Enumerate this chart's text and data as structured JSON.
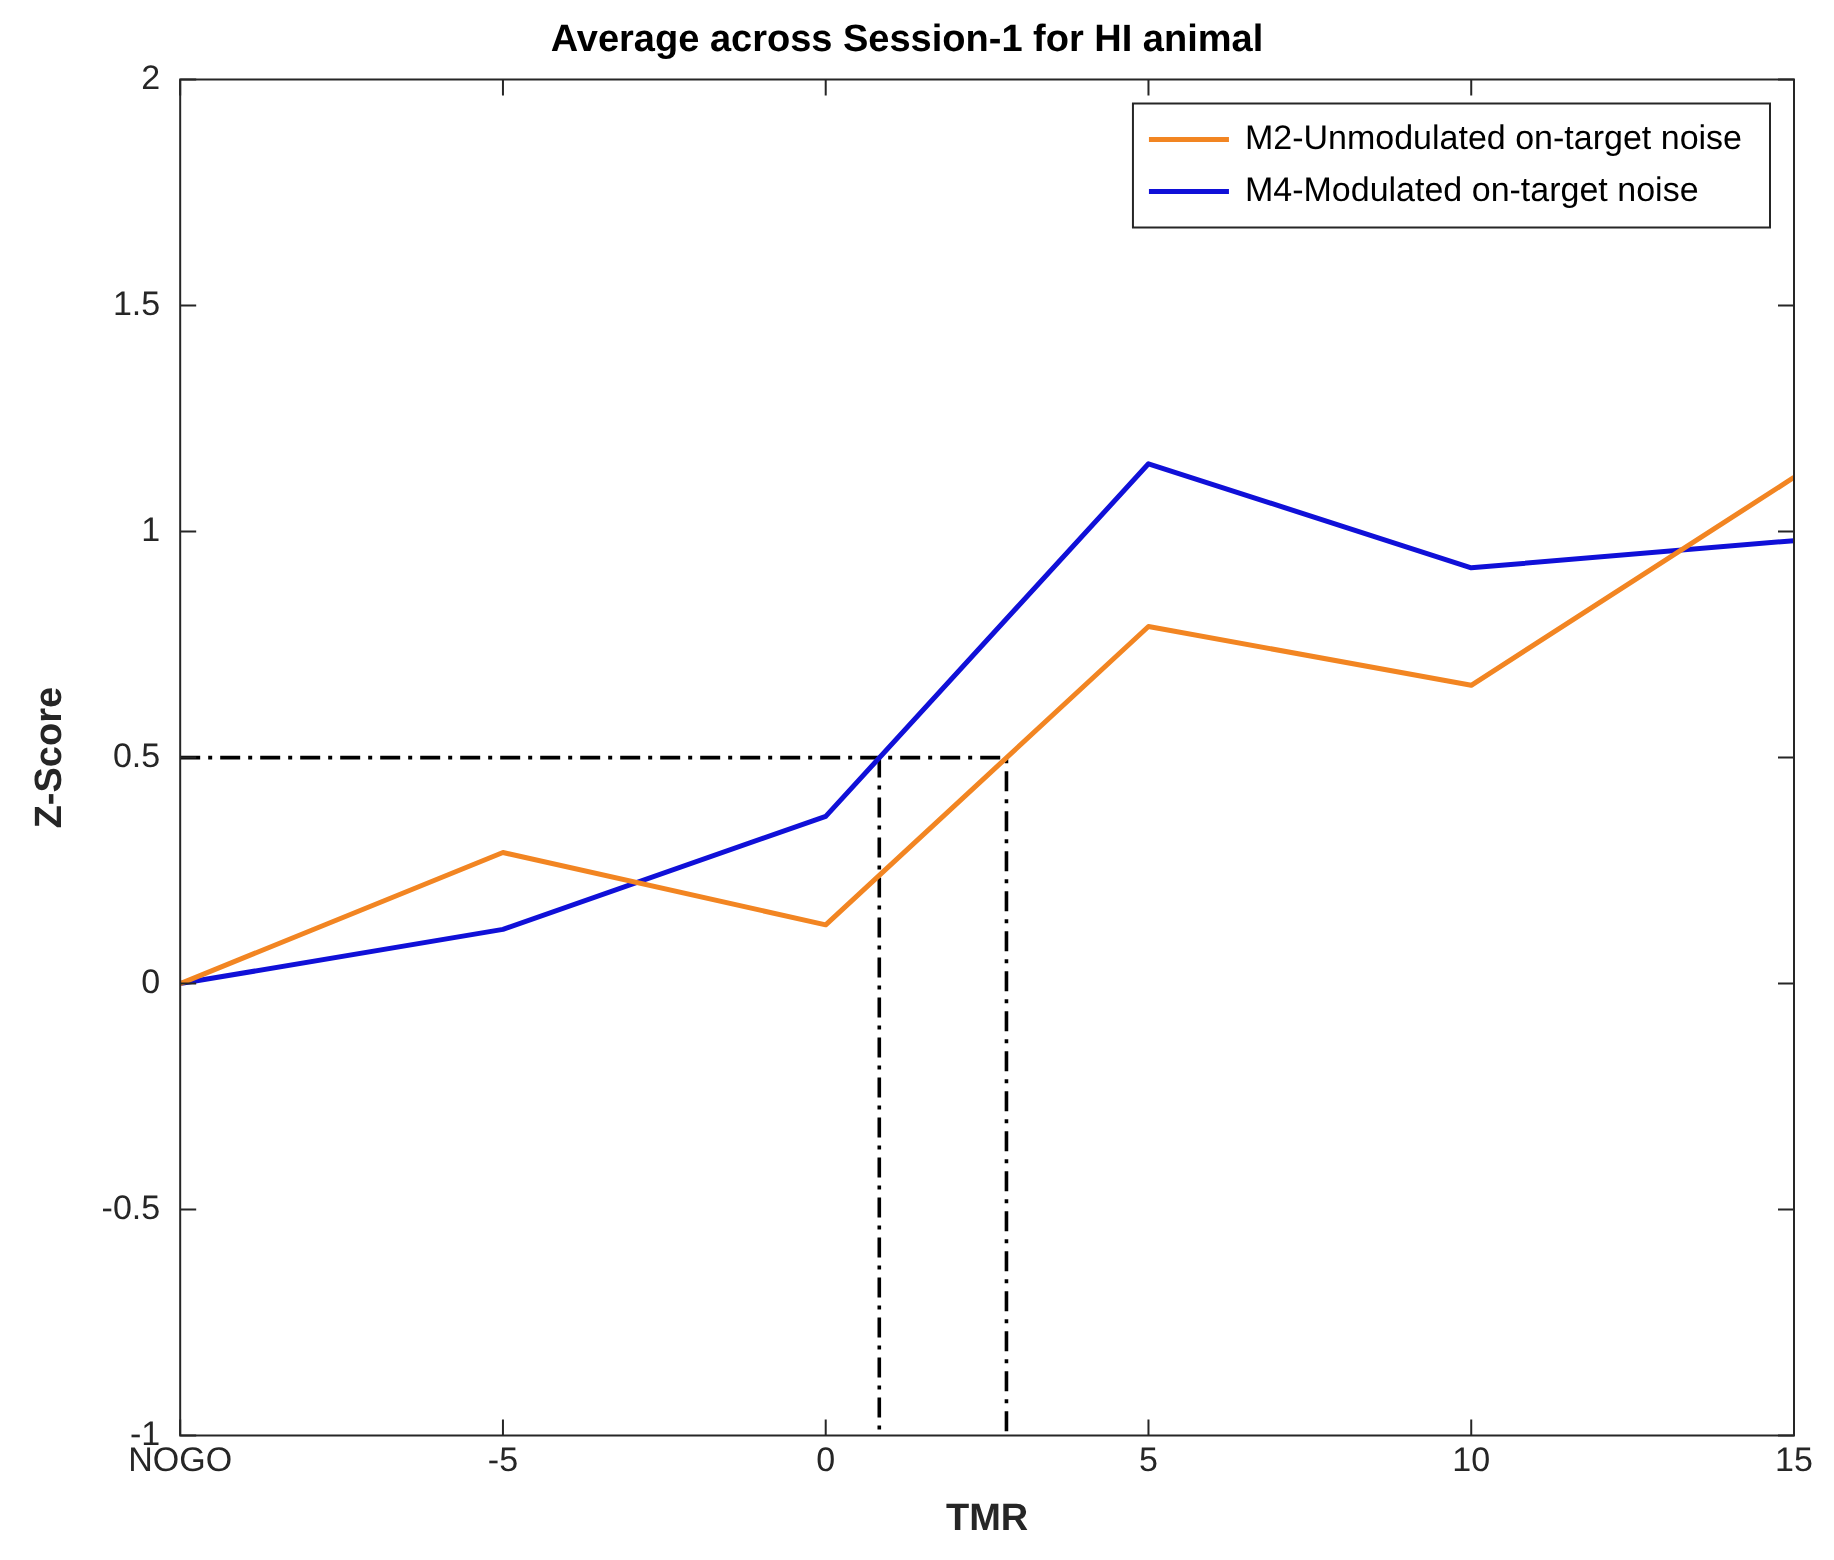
{
  "chart_data": {
    "type": "line",
    "title": "Average across Session-1 for HI animal",
    "xlabel": "TMR",
    "ylabel": "Z-Score",
    "x": [
      -10,
      -5,
      0,
      5,
      10,
      15
    ],
    "xlim": [
      -10,
      15
    ],
    "xticks": [
      {
        "value": -10,
        "label": "NOGO"
      },
      -5,
      0,
      5,
      10,
      15
    ],
    "ylim": [
      -1,
      2
    ],
    "yticks": [
      -1,
      -0.5,
      0,
      0.5,
      1,
      1.5,
      2
    ],
    "series": [
      {
        "name": "M2-Unmodulated on-target noise",
        "color": "#f28522",
        "values": [
          0,
          0.29,
          0.13,
          0.79,
          0.66,
          1.12
        ]
      },
      {
        "name": "M4-Modulated on-target noise",
        "color": "#1010d8",
        "values": [
          0,
          0.12,
          0.37,
          1.15,
          0.92,
          0.98
        ]
      },
      {
        "color": "#000000",
        "x": [
          -10,
          2.8,
          2.8
        ],
        "values": [
          0.5,
          0.5,
          -1
        ],
        "line_style": "dashed"
      },
      {
        "color": "#000000",
        "x": [
          0.83,
          0.83
        ],
        "values": [
          0.5,
          -1
        ],
        "line_style": "dashed"
      }
    ],
    "grid": false,
    "legend": "top right",
    "marker": "none"
  }
}
